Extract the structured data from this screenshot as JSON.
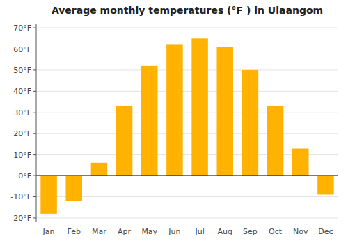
{
  "chart_data": {
    "type": "bar",
    "title": "Average monthly temperatures (°F ) in Ulaangom",
    "categories": [
      "Jan",
      "Feb",
      "Mar",
      "Apr",
      "May",
      "Jun",
      "Jul",
      "Aug",
      "Sep",
      "Oct",
      "Nov",
      "Dec"
    ],
    "values": [
      -18,
      -12,
      6,
      33,
      52,
      62,
      65,
      61,
      50,
      33,
      13,
      -9
    ],
    "color": "#FFB300",
    "ylim": [
      -22,
      72
    ],
    "yticks": [
      {
        "value": -20,
        "label": "-20°F"
      },
      {
        "value": -10,
        "label": "-10°F"
      },
      {
        "value": 0,
        "label": "0°F"
      },
      {
        "value": 10,
        "label": "10°F"
      },
      {
        "value": 20,
        "label": "20°F"
      },
      {
        "value": 30,
        "label": "30°F"
      },
      {
        "value": 40,
        "label": "40°F"
      },
      {
        "value": 50,
        "label": "50°F"
      },
      {
        "value": 60,
        "label": "60°F"
      },
      {
        "value": 70,
        "label": "70°F"
      }
    ],
    "grid": true
  }
}
